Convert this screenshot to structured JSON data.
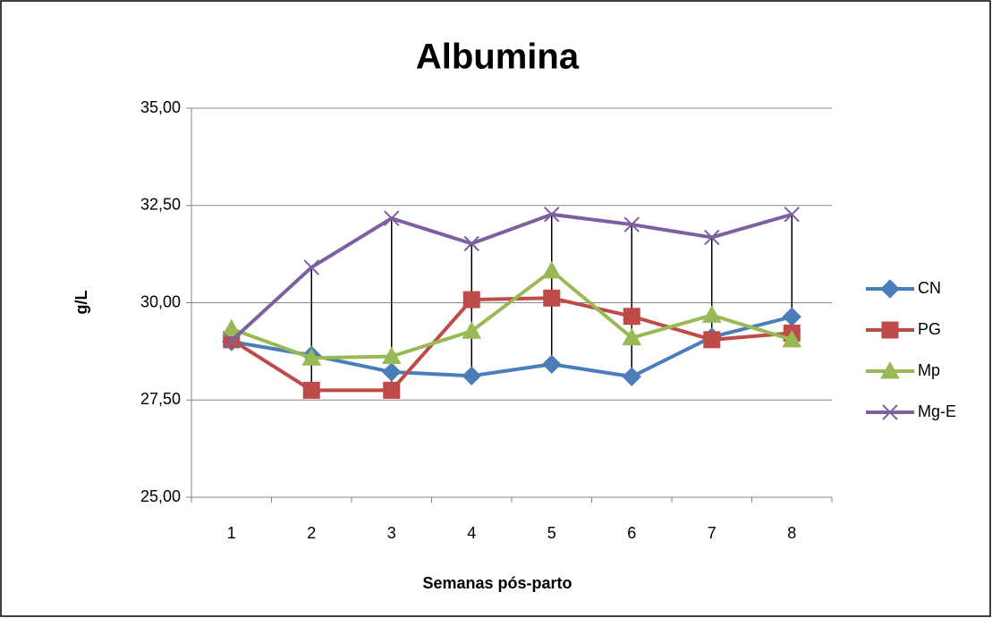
{
  "chart_data": {
    "type": "line",
    "title": "Albumina",
    "x_label": "Semanas pós-parto",
    "y_label": "g/L",
    "categories": [
      "1",
      "2",
      "3",
      "4",
      "5",
      "6",
      "7",
      "8"
    ],
    "series": [
      {
        "name": "CN",
        "color": "#4a7ebb",
        "marker": "diamond",
        "values": [
          29.0,
          28.65,
          28.22,
          28.12,
          28.42,
          28.1,
          29.12,
          29.64
        ]
      },
      {
        "name": "PG",
        "color": "#be4b48",
        "marker": "square",
        "values": [
          29.05,
          27.75,
          27.75,
          30.08,
          30.12,
          29.65,
          29.05,
          29.22
        ]
      },
      {
        "name": "Mp",
        "color": "#98b954",
        "marker": "triangle",
        "values": [
          29.33,
          28.58,
          28.62,
          29.27,
          30.82,
          29.1,
          29.68,
          29.05
        ]
      },
      {
        "name": "Mg-E",
        "color": "#7d60a0",
        "marker": "x",
        "values": [
          29.02,
          30.91,
          32.17,
          31.52,
          32.27,
          32.01,
          31.68,
          32.27
        ]
      }
    ],
    "ylim": [
      25,
      35
    ],
    "yticks": [
      {
        "value": 25,
        "label": "25,00"
      },
      {
        "value": 27.5,
        "label": "27,50"
      },
      {
        "value": 30,
        "label": "30,00"
      },
      {
        "value": 32.5,
        "label": "32,50"
      },
      {
        "value": 35,
        "label": "35,00"
      }
    ],
    "grid": true,
    "high_low_lines": true,
    "legend": "right"
  }
}
